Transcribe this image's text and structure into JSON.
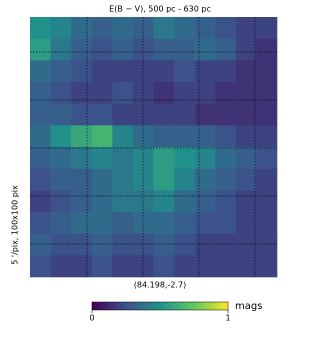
{
  "chart_data": {
    "type": "heatmap",
    "title": "E(B − V), 500 pc - 630 pc",
    "xlabel": "(84.198,-2.7)",
    "ylabel": "5 '/pix,   100x100 pix",
    "colormap": "viridis",
    "clim": [
      0,
      1
    ],
    "cticks": [
      0,
      1
    ],
    "colorbar_label": "mags",
    "values": [
      [
        0.5,
        0.45,
        0.35,
        0.3,
        0.35,
        0.3,
        0.4,
        0.35,
        0.3,
        0.25,
        0.2,
        0.2
      ],
      [
        0.55,
        0.4,
        0.3,
        0.25,
        0.3,
        0.25,
        0.3,
        0.3,
        0.35,
        0.3,
        0.2,
        0.15
      ],
      [
        0.35,
        0.3,
        0.25,
        0.2,
        0.2,
        0.2,
        0.2,
        0.25,
        0.2,
        0.2,
        0.15,
        0.15
      ],
      [
        0.3,
        0.25,
        0.2,
        0.2,
        0.25,
        0.2,
        0.15,
        0.2,
        0.2,
        0.15,
        0.15,
        0.15
      ],
      [
        0.3,
        0.3,
        0.25,
        0.25,
        0.2,
        0.2,
        0.2,
        0.2,
        0.15,
        0.15,
        0.15,
        0.15
      ],
      [
        0.35,
        0.5,
        0.6,
        0.65,
        0.45,
        0.35,
        0.3,
        0.3,
        0.3,
        0.25,
        0.2,
        0.2
      ],
      [
        0.3,
        0.35,
        0.4,
        0.45,
        0.4,
        0.45,
        0.55,
        0.5,
        0.45,
        0.35,
        0.3,
        0.25
      ],
      [
        0.25,
        0.3,
        0.3,
        0.35,
        0.4,
        0.45,
        0.55,
        0.45,
        0.35,
        0.3,
        0.25,
        0.2
      ],
      [
        0.2,
        0.25,
        0.3,
        0.35,
        0.4,
        0.4,
        0.45,
        0.35,
        0.3,
        0.25,
        0.2,
        0.2
      ],
      [
        0.25,
        0.3,
        0.35,
        0.35,
        0.3,
        0.35,
        0.35,
        0.3,
        0.25,
        0.25,
        0.2,
        0.2
      ],
      [
        0.3,
        0.25,
        0.25,
        0.3,
        0.25,
        0.25,
        0.3,
        0.25,
        0.2,
        0.2,
        0.2,
        0.2
      ],
      [
        0.25,
        0.2,
        0.2,
        0.25,
        0.2,
        0.2,
        0.25,
        0.2,
        0.2,
        0.2,
        0.2,
        0.2
      ]
    ]
  }
}
